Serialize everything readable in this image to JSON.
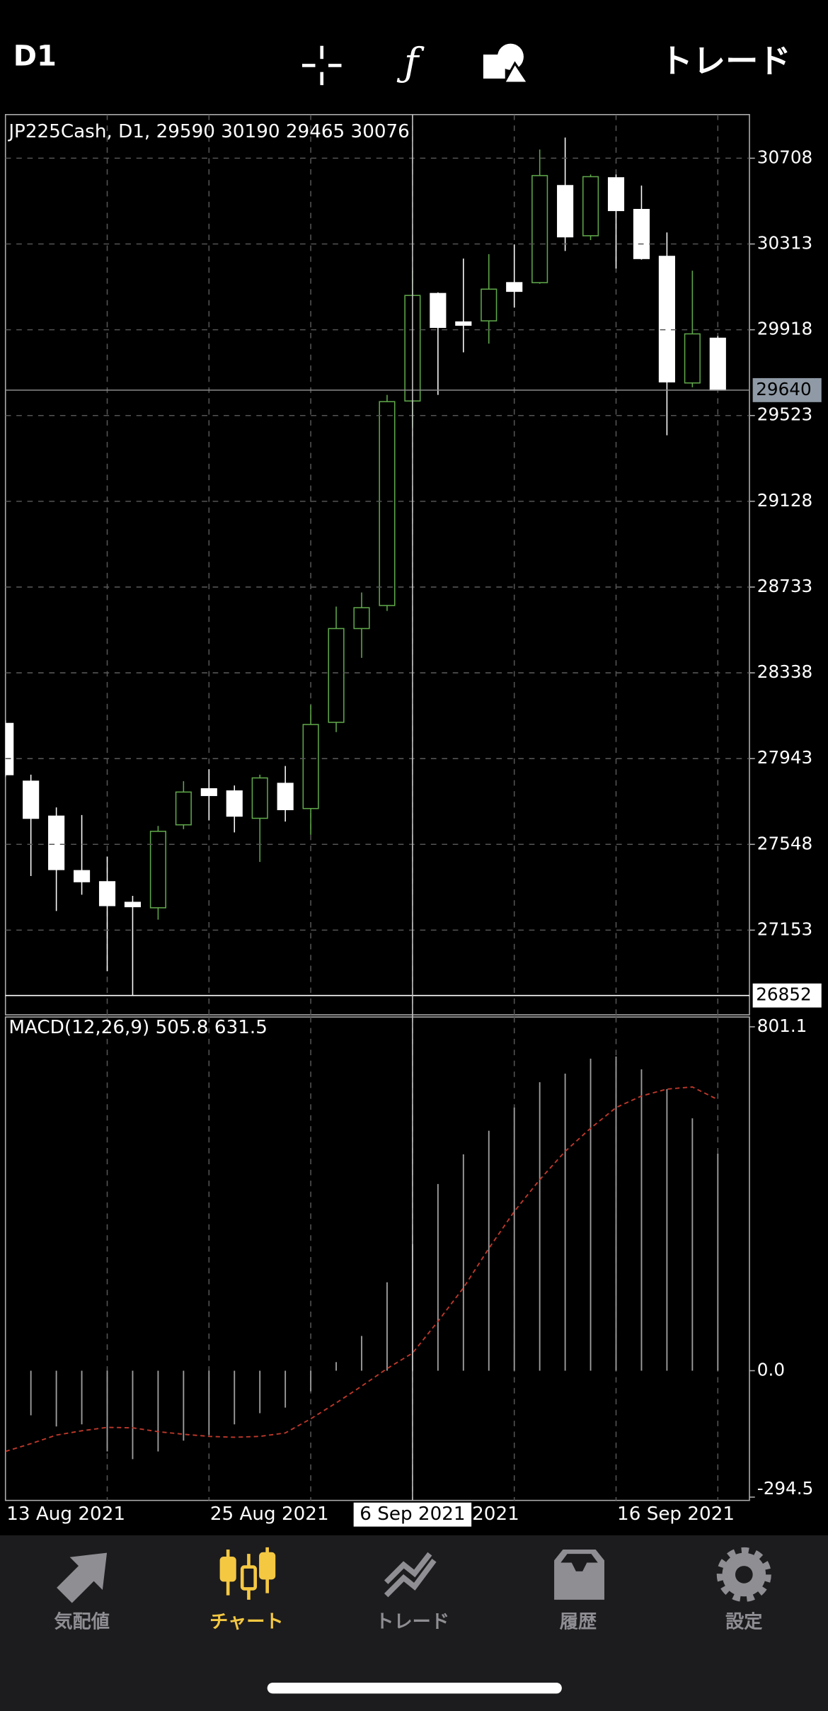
{
  "toolbar": {
    "timeframe": "D1",
    "trade_button": "トレード"
  },
  "chart_data": [
    {
      "type": "candlestick",
      "title": "JP225Cash, D1, 29590 30190 29465 30076",
      "categories": [
        "13 Aug 2021",
        null,
        null,
        null,
        null,
        null,
        null,
        null,
        "25 Aug 2021",
        null,
        null,
        null,
        null,
        null,
        null,
        null,
        "6 Sep 2021",
        null,
        null,
        null,
        null,
        null,
        null,
        null,
        "16 Sep 2021",
        null,
        null,
        null,
        null
      ],
      "open": [
        28105,
        27839,
        27678,
        27427,
        27376,
        27281,
        27256,
        27638,
        27804,
        27794,
        27668,
        27829,
        27713,
        28110,
        28542,
        28648,
        29590,
        30085,
        29954,
        29959,
        30135,
        30135,
        30582,
        30351,
        30618,
        30472,
        30256,
        29673,
        29879
      ],
      "high": [
        28120,
        27869,
        27718,
        27683,
        27492,
        27311,
        27633,
        27839,
        27894,
        27819,
        27869,
        27909,
        28190,
        28643,
        28708,
        29618,
        30190,
        30090,
        30246,
        30266,
        30311,
        30748,
        30803,
        30633,
        30633,
        30582,
        30366,
        30190,
        29889
      ],
      "low": [
        27860,
        27402,
        27241,
        27316,
        26964,
        26852,
        27201,
        27618,
        27658,
        27603,
        27467,
        27653,
        27592,
        28065,
        28407,
        28623,
        29465,
        29618,
        29814,
        29854,
        30020,
        30130,
        30281,
        30331,
        30200,
        30241,
        29432,
        29653,
        29638
      ],
      "close": [
        27869,
        27668,
        27432,
        27376,
        27266,
        27261,
        27608,
        27789,
        27773,
        27678,
        27854,
        27708,
        28100,
        28542,
        28638,
        29587,
        30076,
        29929,
        29939,
        30105,
        30095,
        30628,
        30346,
        30623,
        30467,
        30246,
        29678,
        29899,
        29640
      ],
      "up_color": "#5fa84a",
      "down_color": "#ffffff",
      "ylim": [
        26763,
        30909
      ],
      "yticks": [
        27153,
        27548,
        27943,
        28338,
        28733,
        29128,
        29523,
        29918,
        30313,
        30708
      ],
      "grid": true,
      "bid_line": 29640,
      "low_line": 26852,
      "crosshair_index": 16,
      "crosshair_label": "6 Sep 2021"
    },
    {
      "type": "macd",
      "title": "MACD(12,26,9) 505.8 631.5",
      "histogram": {
        "color": "#9e9e9e",
        "values": [
          null,
          -104,
          -130,
          -125,
          -188,
          -206,
          -188,
          -163,
          -150,
          -125,
          -99,
          -86,
          -48,
          20,
          81,
          206,
          295,
          435,
          504,
          559,
          613,
          672,
          692,
          727,
          732,
          702,
          656,
          588,
          505.8
        ]
      },
      "signal": {
        "color": "#c0392b",
        "values": [
          -188,
          -170,
          -150,
          -140,
          -132,
          -133,
          -142,
          -148,
          -153,
          -155,
          -153,
          -145,
          -112,
          -75,
          -36,
          5,
          41,
          115,
          193,
          285,
          371,
          445,
          511,
          565,
          613,
          640,
          656,
          661,
          631.5
        ]
      },
      "ylim": [
        -294.5,
        801.1
      ],
      "yticks": [
        -294.5,
        {
          "value": 0,
          "label": "0.0"
        },
        801.1
      ]
    }
  ],
  "nav": {
    "active_index": 1,
    "items": [
      {
        "label": "気配値"
      },
      {
        "label": "チャート"
      },
      {
        "label": "トレード"
      },
      {
        "label": "履歴"
      },
      {
        "label": "設定"
      }
    ]
  }
}
